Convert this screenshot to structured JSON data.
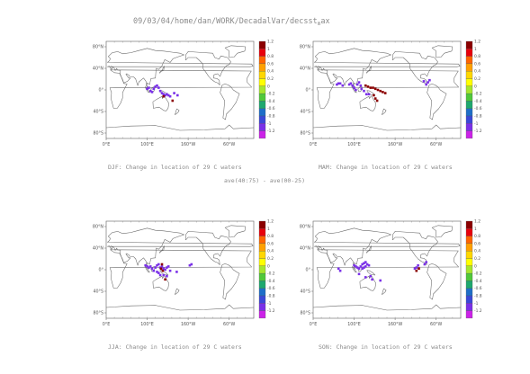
{
  "header": {
    "title": "09/03/04/home/dan/WORK/DecadalVar/decsst",
    "title_sub": "m",
    "title_tail": "ax"
  },
  "middle_label": "ave(40:75) - ave(00-25)",
  "axes": {
    "lat_ticks": [
      "80°N",
      "40°N",
      "0°",
      "40°S",
      "80°S"
    ],
    "lon_ticks": [
      "0°E",
      "100°E",
      "160°W",
      "60°W"
    ]
  },
  "colorbar": {
    "labels": [
      "1.2",
      "1",
      "0.8",
      "0.6",
      "0.4",
      "0.2",
      "0",
      "-0.2",
      "-0.4",
      "-0.6",
      "-0.8",
      "-1",
      "-1.2"
    ],
    "colors": [
      "#8b0000",
      "#e8000b",
      "#ff6400",
      "#ffa000",
      "#ffd700",
      "#ffff00",
      "#a6e62e",
      "#4fc83a",
      "#1ea86e",
      "#1e6ec8",
      "#3a48d8",
      "#7a30e8",
      "#cc22e8"
    ]
  },
  "colors": {
    "negative_blue": "#5a3df0",
    "positive_red": "#a0002a"
  },
  "panels": [
    {
      "caption": "DJF: Change in location of 29 C waters",
      "cells": [
        {
          "lon": 100,
          "lat": 2,
          "v": -1.0
        },
        {
          "lon": 104,
          "lat": 4,
          "v": -1.0
        },
        {
          "lon": 108,
          "lat": -2,
          "v": -1.0
        },
        {
          "lon": 112,
          "lat": -4,
          "v": -1.0
        },
        {
          "lon": 116,
          "lat": 2,
          "v": -1.0
        },
        {
          "lon": 120,
          "lat": 6,
          "v": -1.0
        },
        {
          "lon": 124,
          "lat": 8,
          "v": -1.0
        },
        {
          "lon": 128,
          "lat": 4,
          "v": -1.0
        },
        {
          "lon": 132,
          "lat": -2,
          "v": -1.0
        },
        {
          "lon": 136,
          "lat": -6,
          "v": -1.0
        },
        {
          "lon": 140,
          "lat": -8,
          "v": -1.0
        },
        {
          "lon": 144,
          "lat": -10,
          "v": -1.0
        },
        {
          "lon": 148,
          "lat": -8,
          "v": -1.0
        },
        {
          "lon": 152,
          "lat": -10,
          "v": -1.0
        },
        {
          "lon": 156,
          "lat": -12,
          "v": -1.0
        },
        {
          "lon": 166,
          "lat": -6,
          "v": -1.0
        },
        {
          "lon": 174,
          "lat": -10,
          "v": -1.0
        },
        {
          "lon": 140,
          "lat": -12,
          "v": 1.2
        },
        {
          "lon": 162,
          "lat": -20,
          "v": 1.2
        }
      ]
    },
    {
      "caption": "MAM: Change in location of 29 C waters",
      "cells": [
        {
          "lon": 58,
          "lat": 10,
          "v": -1.0
        },
        {
          "lon": 62,
          "lat": 12,
          "v": -1.0
        },
        {
          "lon": 66,
          "lat": 12,
          "v": -1.0
        },
        {
          "lon": 72,
          "lat": 8,
          "v": -1.0
        },
        {
          "lon": 88,
          "lat": 10,
          "v": -1.0
        },
        {
          "lon": 92,
          "lat": 12,
          "v": -1.0
        },
        {
          "lon": 96,
          "lat": 8,
          "v": -1.0
        },
        {
          "lon": 100,
          "lat": 4,
          "v": -1.0
        },
        {
          "lon": 104,
          "lat": 0,
          "v": -1.0
        },
        {
          "lon": 108,
          "lat": 10,
          "v": -1.0
        },
        {
          "lon": 112,
          "lat": 14,
          "v": -1.0
        },
        {
          "lon": 116,
          "lat": 8,
          "v": -1.0
        },
        {
          "lon": 118,
          "lat": 2,
          "v": -1.0
        },
        {
          "lon": 124,
          "lat": -2,
          "v": -1.0
        },
        {
          "lon": 130,
          "lat": -8,
          "v": -1.0
        },
        {
          "lon": 136,
          "lat": -8,
          "v": -1.0
        },
        {
          "lon": 128,
          "lat": 8,
          "v": 1.2
        },
        {
          "lon": 134,
          "lat": 6,
          "v": 1.2
        },
        {
          "lon": 140,
          "lat": 4,
          "v": 1.2
        },
        {
          "lon": 146,
          "lat": 4,
          "v": 1.2
        },
        {
          "lon": 152,
          "lat": 2,
          "v": 1.2
        },
        {
          "lon": 158,
          "lat": 0,
          "v": 1.2
        },
        {
          "lon": 164,
          "lat": -2,
          "v": 1.2
        },
        {
          "lon": 170,
          "lat": -4,
          "v": 1.2
        },
        {
          "lon": 176,
          "lat": -6,
          "v": 1.2
        },
        {
          "lon": 148,
          "lat": -10,
          "v": 1.2
        },
        {
          "lon": 152,
          "lat": -16,
          "v": 1.2
        },
        {
          "lon": 156,
          "lat": -20,
          "v": 1.2
        },
        {
          "lon": 280,
          "lat": 14,
          "v": -1.0
        },
        {
          "lon": 284,
          "lat": 18,
          "v": -1.0
        },
        {
          "lon": 276,
          "lat": 10,
          "v": -1.0
        },
        {
          "lon": 270,
          "lat": 16,
          "v": -1.0
        }
      ]
    },
    {
      "caption": "JJA: Change in location of 29 C waters",
      "cells": [
        {
          "lon": 96,
          "lat": 8,
          "v": -1.0
        },
        {
          "lon": 100,
          "lat": 6,
          "v": -1.0
        },
        {
          "lon": 104,
          "lat": 4,
          "v": -1.0
        },
        {
          "lon": 108,
          "lat": 6,
          "v": -1.0
        },
        {
          "lon": 112,
          "lat": 2,
          "v": -1.0
        },
        {
          "lon": 116,
          "lat": -2,
          "v": -1.0
        },
        {
          "lon": 120,
          "lat": 4,
          "v": -1.0
        },
        {
          "lon": 124,
          "lat": 8,
          "v": -1.0
        },
        {
          "lon": 128,
          "lat": 10,
          "v": -1.0
        },
        {
          "lon": 132,
          "lat": 4,
          "v": -1.0
        },
        {
          "lon": 136,
          "lat": 6,
          "v": -1.0
        },
        {
          "lon": 140,
          "lat": 2,
          "v": -1.0
        },
        {
          "lon": 144,
          "lat": 0,
          "v": -1.0
        },
        {
          "lon": 148,
          "lat": 4,
          "v": -1.0
        },
        {
          "lon": 152,
          "lat": 6,
          "v": -1.0
        },
        {
          "lon": 156,
          "lat": -2,
          "v": -1.0
        },
        {
          "lon": 124,
          "lat": -4,
          "v": -1.0
        },
        {
          "lon": 128,
          "lat": -6,
          "v": -1.0
        },
        {
          "lon": 132,
          "lat": -10,
          "v": -1.0
        },
        {
          "lon": 140,
          "lat": -10,
          "v": -1.0
        },
        {
          "lon": 148,
          "lat": -12,
          "v": -1.0
        },
        {
          "lon": 134,
          "lat": 2,
          "v": 1.2
        },
        {
          "lon": 138,
          "lat": -2,
          "v": 1.2
        },
        {
          "lon": 136,
          "lat": 10,
          "v": 1.2
        },
        {
          "lon": 144,
          "lat": -18,
          "v": 1.2
        },
        {
          "lon": 172,
          "lat": -4,
          "v": -1.0
        },
        {
          "lon": 204,
          "lat": 8,
          "v": -1.0
        },
        {
          "lon": 208,
          "lat": 10,
          "v": -1.0
        }
      ]
    },
    {
      "caption": "SON: Change in location of 29 C waters",
      "cells": [
        {
          "lon": 62,
          "lat": 2,
          "v": -1.0
        },
        {
          "lon": 66,
          "lat": -2,
          "v": -1.0
        },
        {
          "lon": 100,
          "lat": 8,
          "v": -1.0
        },
        {
          "lon": 104,
          "lat": 6,
          "v": -1.0
        },
        {
          "lon": 108,
          "lat": 4,
          "v": -1.0
        },
        {
          "lon": 112,
          "lat": 2,
          "v": -1.0
        },
        {
          "lon": 116,
          "lat": 6,
          "v": -1.0
        },
        {
          "lon": 120,
          "lat": 10,
          "v": -1.0
        },
        {
          "lon": 124,
          "lat": 12,
          "v": -1.0
        },
        {
          "lon": 128,
          "lat": 14,
          "v": -1.0
        },
        {
          "lon": 132,
          "lat": 10,
          "v": -1.0
        },
        {
          "lon": 136,
          "lat": 8,
          "v": -1.0
        },
        {
          "lon": 120,
          "lat": 2,
          "v": -1.0
        },
        {
          "lon": 124,
          "lat": 4,
          "v": -1.0
        },
        {
          "lon": 128,
          "lat": 6,
          "v": -1.0
        },
        {
          "lon": 112,
          "lat": -8,
          "v": -1.0
        },
        {
          "lon": 128,
          "lat": -14,
          "v": -1.0
        },
        {
          "lon": 140,
          "lat": -12,
          "v": -1.0
        },
        {
          "lon": 144,
          "lat": -18,
          "v": -1.0
        },
        {
          "lon": 164,
          "lat": -20,
          "v": -1.0
        },
        {
          "lon": 248,
          "lat": 2,
          "v": -1.0
        },
        {
          "lon": 252,
          "lat": 4,
          "v": -1.0
        },
        {
          "lon": 256,
          "lat": 8,
          "v": -1.0
        },
        {
          "lon": 272,
          "lat": 10,
          "v": -1.0
        },
        {
          "lon": 276,
          "lat": 14,
          "v": -1.0
        },
        {
          "lon": 252,
          "lat": -2,
          "v": 1.2
        },
        {
          "lon": 258,
          "lat": 2,
          "v": 1.2
        }
      ]
    }
  ]
}
